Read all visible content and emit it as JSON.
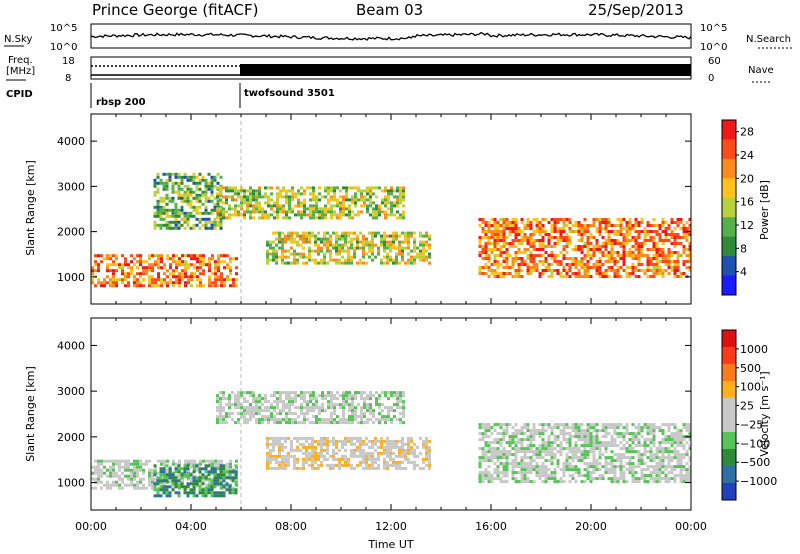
{
  "header": {
    "station": "Prince George (fitACF)",
    "beam": "Beam 03",
    "date": "25/Sep/2013"
  },
  "top_panels": {
    "nsky_label": "N.Sky",
    "nsearch_label": "N.Search",
    "nsky_ticks": [
      "10^5",
      "10^0"
    ],
    "freq_label_1": "Freq.",
    "freq_label_2": "[MHz]",
    "freq_ticks": [
      "18",
      "8"
    ],
    "nave_label": "Nave",
    "nave_ticks": [
      "60",
      "0"
    ],
    "cpid_label": "CPID",
    "programs": [
      {
        "name": "rbsp 200",
        "start": "00:00"
      },
      {
        "name": "twofsound 3501",
        "start": "06:00"
      }
    ]
  },
  "chart_data": [
    {
      "type": "heatmap",
      "name": "power",
      "ylabel": "Slant Range [km]",
      "xlabel": "",
      "x_ticks": [
        "00:00",
        "04:00",
        "08:00",
        "12:00",
        "16:00",
        "20:00",
        "00:00"
      ],
      "xlim_hours": [
        0,
        24
      ],
      "y_ticks": [
        1000,
        2000,
        3000,
        4000
      ],
      "ylim": [
        400,
        4600
      ],
      "colorbar": {
        "label": "Power [dB]",
        "ticks": [
          4,
          8,
          12,
          16,
          20,
          24,
          28
        ],
        "range": [
          0,
          30
        ],
        "colors": [
          "#1b1bff",
          "#1f4fb0",
          "#2e8b3a",
          "#55b04a",
          "#b8d23c",
          "#ffc21a",
          "#ff8c1a",
          "#ff4a1a",
          "#f01818"
        ]
      },
      "echo_regions": [
        {
          "t0": 0.0,
          "t1": 5.8,
          "r0": 800,
          "r1": 1500,
          "level": 0.85
        },
        {
          "t0": 2.5,
          "t1": 5.2,
          "r0": 2100,
          "r1": 3300,
          "level": 0.45
        },
        {
          "t0": 5.0,
          "t1": 12.5,
          "r0": 2300,
          "r1": 3000,
          "level": 0.55
        },
        {
          "t0": 7.0,
          "t1": 13.5,
          "r0": 1300,
          "r1": 2000,
          "level": 0.6
        },
        {
          "t0": 15.5,
          "t1": 24.0,
          "r0": 1000,
          "r1": 2300,
          "level": 0.85
        }
      ]
    },
    {
      "type": "heatmap",
      "name": "velocity",
      "ylabel": "Slant Range [km]",
      "xlabel": "Time UT",
      "x_ticks": [
        "00:00",
        "04:00",
        "08:00",
        "12:00",
        "16:00",
        "20:00",
        "00:00"
      ],
      "xlim_hours": [
        0,
        24
      ],
      "y_ticks": [
        1000,
        2000,
        3000,
        4000
      ],
      "ylim": [
        400,
        4600
      ],
      "colorbar": {
        "label": "Velocity [m s⁻¹]",
        "ticks": [
          "1000",
          "500",
          "100",
          "25",
          "−25",
          "−100",
          "−500",
          "−1000"
        ],
        "colors": [
          "#2040c0",
          "#2f6fa8",
          "#2e8b3a",
          "#56c456",
          "#c8c8c8",
          "#c8c8c8",
          "#ffb01a",
          "#ff7a1a",
          "#ff3a1a",
          "#e01010"
        ]
      },
      "echo_regions": [
        {
          "t0": 0.0,
          "t1": 5.8,
          "r0": 900,
          "r1": 1500,
          "level": 0.0
        },
        {
          "t0": 2.5,
          "t1": 5.8,
          "r0": 700,
          "r1": 1400,
          "level": -0.5
        },
        {
          "t0": 5.0,
          "t1": 12.5,
          "r0": 2300,
          "r1": 3000,
          "level": 0.0
        },
        {
          "t0": 7.0,
          "t1": 13.5,
          "r0": 1300,
          "r1": 2000,
          "level": 0.3
        },
        {
          "t0": 15.5,
          "t1": 24.0,
          "r0": 1000,
          "r1": 2300,
          "level": 0.0
        }
      ]
    }
  ]
}
